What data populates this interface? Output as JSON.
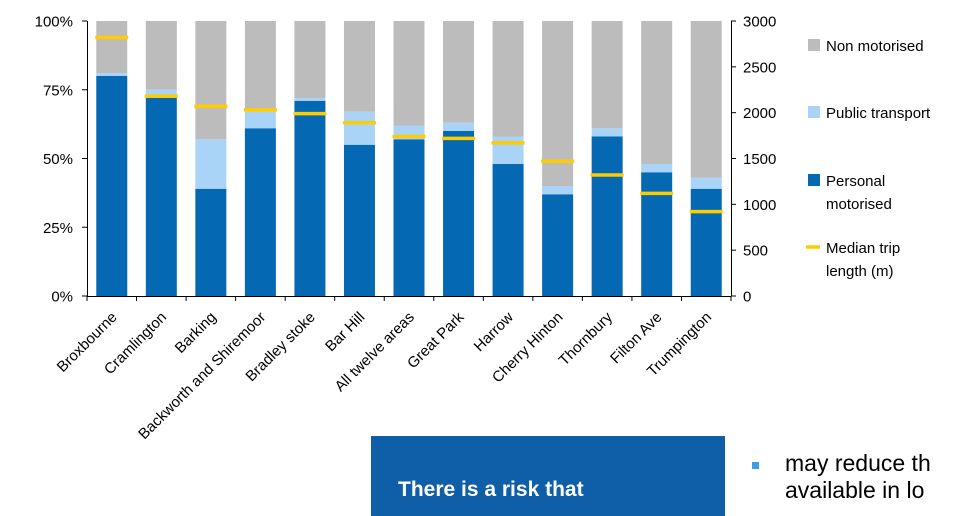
{
  "colors": {
    "personal": "#0568b3",
    "public": "#a9d3f7",
    "non": "#bcbcbc",
    "median": "#ffcc00",
    "callout_bg": "#0f5fa8",
    "bullet": "#3f9de3"
  },
  "chart_data": {
    "type": "bar",
    "stacked": true,
    "categories": [
      "Broxbourne",
      "Cramlington",
      "Barking",
      "Backworth and Shiremoor",
      "Bradley stoke",
      "Bar Hill",
      "All twelve areas",
      "Great Park",
      "Harrow",
      "Cherry Hinton",
      "Thornbury",
      "Filton Ave",
      "Trumpington"
    ],
    "series": [
      {
        "name": "Personal motorised",
        "values": [
          80,
          72,
          39,
          61,
          71,
          55,
          57,
          60,
          48,
          37,
          58,
          45,
          39
        ]
      },
      {
        "name": "Public transport",
        "values": [
          1,
          3,
          18,
          6,
          1,
          12,
          5,
          3,
          10,
          3,
          3,
          3,
          4
        ]
      },
      {
        "name": "Non motorised",
        "values": [
          19,
          25,
          43,
          33,
          28,
          33,
          38,
          37,
          42,
          60,
          39,
          52,
          57
        ]
      }
    ],
    "median_series": {
      "name": "Median trip length (m)",
      "values": [
        2820,
        2180,
        2070,
        2030,
        1990,
        1890,
        1740,
        1720,
        1670,
        1470,
        1320,
        1120,
        920
      ]
    },
    "left_axis": {
      "ticks": [
        "0%",
        "25%",
        "50%",
        "75%",
        "100%"
      ],
      "ylim": [
        0,
        100
      ]
    },
    "right_axis": {
      "ticks": [
        "0",
        "500",
        "1000",
        "1500",
        "2000",
        "2500",
        "3000"
      ],
      "ylim": [
        0,
        3000
      ]
    },
    "legend": {
      "position": "right",
      "items": [
        {
          "key": "non",
          "lines": [
            "Non motorised"
          ]
        },
        {
          "key": "public",
          "lines": [
            "Public transport"
          ]
        },
        {
          "key": "personal",
          "lines": [
            "Personal",
            "motorised"
          ]
        },
        {
          "key": "median",
          "lines": [
            "Median trip",
            "length (m)"
          ]
        }
      ]
    }
  },
  "callout": {
    "title": "There is a risk that",
    "bullet_lines": [
      "may reduce th",
      "available in lo"
    ]
  }
}
